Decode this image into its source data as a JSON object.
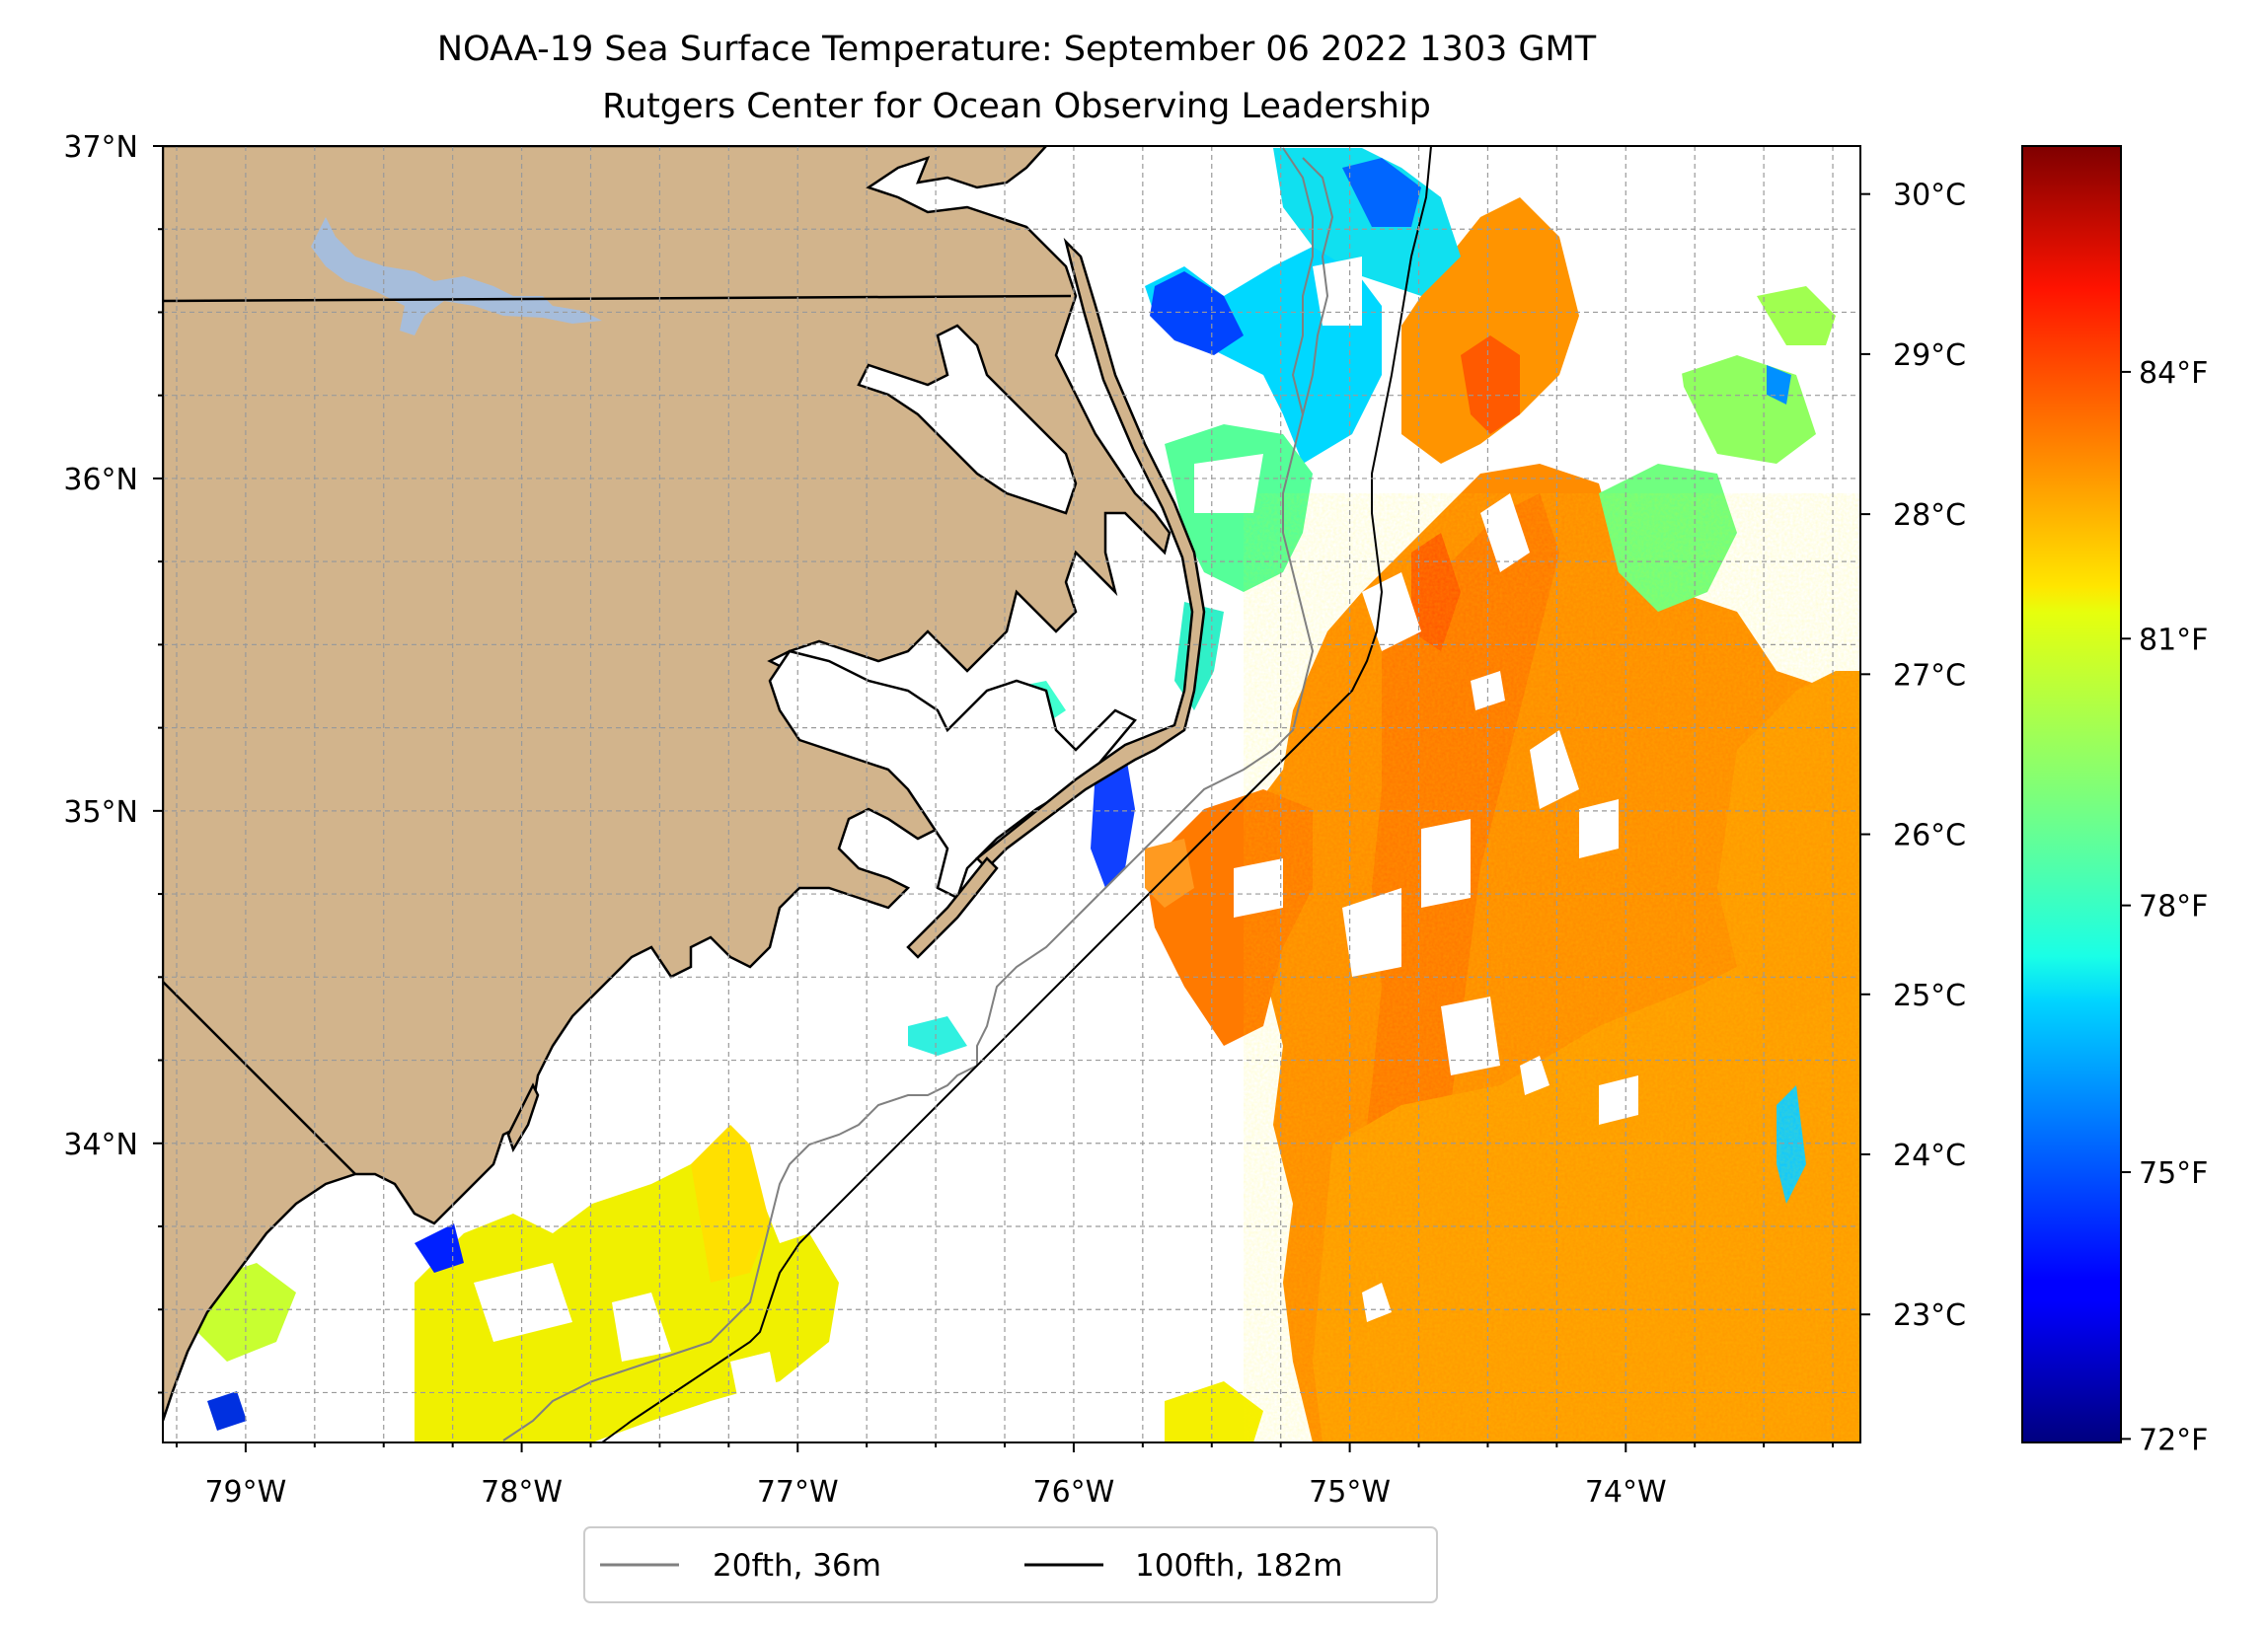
{
  "title": {
    "line1": "NOAA-19 Sea Surface Temperature: September 06 2022 1303 GMT",
    "line2": "Rutgers Center for Ocean Observing Leadership"
  },
  "map": {
    "lon_range": [
      -79.3,
      -73.15
    ],
    "lat_range": [
      33.1,
      37.0
    ],
    "lon_ticks": [
      {
        "value": -79,
        "label": "79°W"
      },
      {
        "value": -78,
        "label": "78°W"
      },
      {
        "value": -77,
        "label": "77°W"
      },
      {
        "value": -76,
        "label": "76°W"
      },
      {
        "value": -75,
        "label": "75°W"
      },
      {
        "value": -74,
        "label": "74°W"
      }
    ],
    "lat_ticks": [
      {
        "value": 37,
        "label": "37°N"
      },
      {
        "value": 36,
        "label": "36°N"
      },
      {
        "value": 35,
        "label": "35°N"
      },
      {
        "value": 34,
        "label": "34°N"
      }
    ],
    "gridlines": true,
    "land_color": "#d2b48c",
    "water_color": "#ffffff",
    "lake_color": "#a6bddb",
    "coast_color": "#000000",
    "contour_20fth_color": "#808080",
    "contour_100fth_color": "#000000"
  },
  "legend": {
    "placement": "below-map",
    "entries": [
      {
        "label": "20fth, 36m",
        "color": "#808080"
      },
      {
        "label": "100fth, 182m",
        "color": "#000000"
      }
    ]
  },
  "colorbar": {
    "colormap": "jet",
    "celsius_range": [
      22.2,
      30.3
    ],
    "celsius_ticks": [
      {
        "value": 30,
        "label": "30°C"
      },
      {
        "value": 29,
        "label": "29°C"
      },
      {
        "value": 28,
        "label": "28°C"
      },
      {
        "value": 27,
        "label": "27°C"
      },
      {
        "value": 26,
        "label": "26°C"
      },
      {
        "value": 25,
        "label": "25°C"
      },
      {
        "value": 24,
        "label": "24°C"
      },
      {
        "value": 23,
        "label": "23°C"
      }
    ],
    "fahrenheit_ticks": [
      {
        "value": 84,
        "label": "84°F"
      },
      {
        "value": 81,
        "label": "81°F"
      },
      {
        "value": 78,
        "label": "78°F"
      },
      {
        "value": 75,
        "label": "75°F"
      },
      {
        "value": 72,
        "label": "72°F"
      }
    ]
  }
}
